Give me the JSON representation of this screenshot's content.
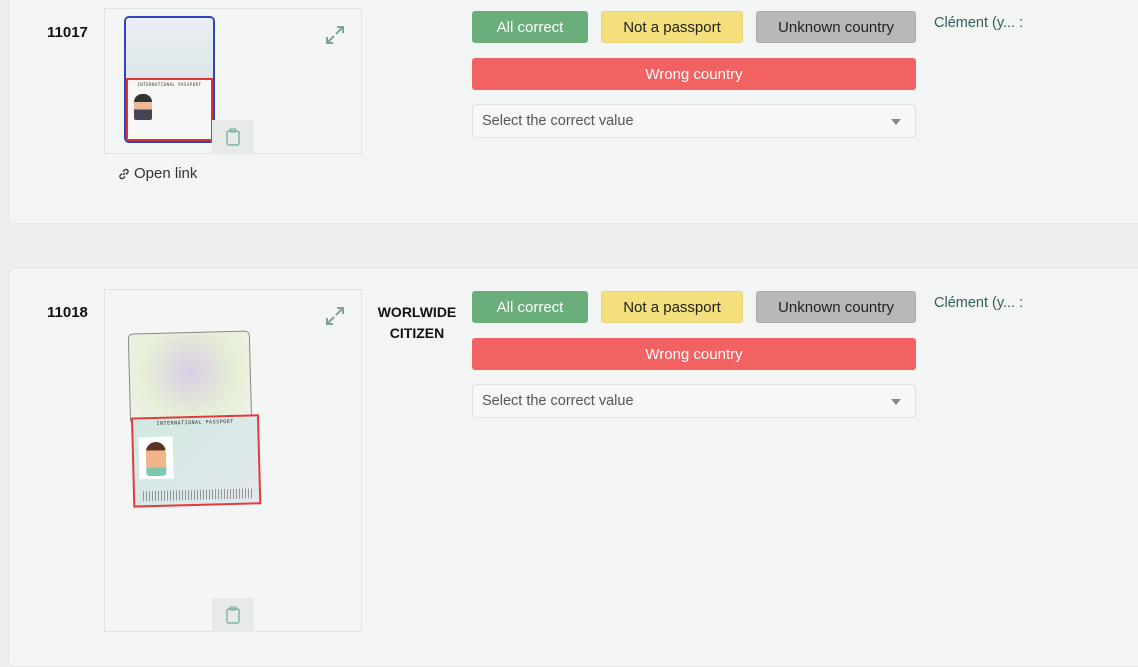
{
  "records": [
    {
      "id": "11017",
      "country": "",
      "image_caption": "INTERNATIONAL PASSPORT",
      "open_link_label": "Open link",
      "buttons": {
        "all_correct": "All correct",
        "not_passport": "Not a passport",
        "unknown_country": "Unknown country",
        "wrong_country": "Wrong country"
      },
      "select_placeholder": "Select the correct value",
      "reviewer": "Clément (y... :"
    },
    {
      "id": "11018",
      "country": "WORLWIDE CITIZEN",
      "image_caption": "INTERNATIONAL PASSPORT",
      "buttons": {
        "all_correct": "All correct",
        "not_passport": "Not a passport",
        "unknown_country": "Unknown country",
        "wrong_country": "Wrong country"
      },
      "select_placeholder": "Select the correct value",
      "reviewer": "Clément (y... :"
    }
  ],
  "colors": {
    "all_correct": "#6aaf7b",
    "not_passport": "#f3df7b",
    "unknown_country": "#b7b8b8",
    "wrong_country": "#f26262",
    "reviewer": "#2f5e59"
  }
}
